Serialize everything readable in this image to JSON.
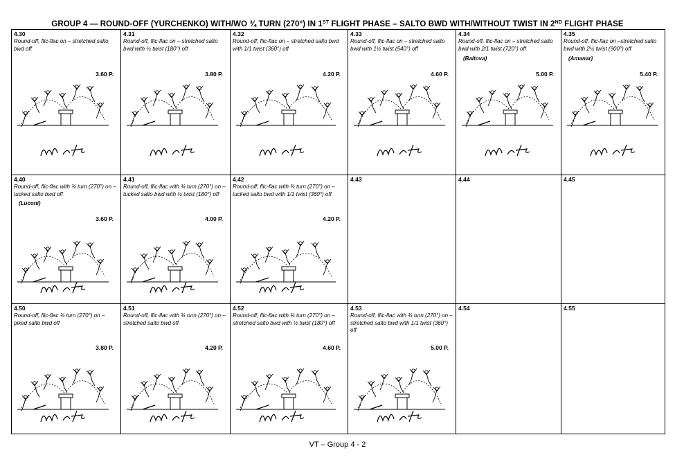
{
  "title": {
    "part1": "GROUP 4 — ROUND-OFF (YURCHENKO) WITH/WO ¾ TURN (270°) IN 1",
    "sup1": "ST",
    "part2": " FLIGHT PHASE – SALTO BWD WITH/WITHOUT TWIST IN 2",
    "sup2": "ND",
    "part3": " FLIGHT PHASE"
  },
  "rows": [
    {
      "cells": [
        {
          "code": "4.30",
          "desc": "Round-off, flic-flac on – stretched salto bwd off",
          "person": "",
          "value": "3.60 P.",
          "turn_label": "",
          "twist_label": "",
          "has_drawing": true
        },
        {
          "code": "4.31",
          "desc": "Round-off, flic-flac on – stretched salto bwd with ½ twist (180°) off",
          "person": "",
          "value": "3.80 P.",
          "turn_label": "",
          "twist_label": "180°",
          "has_drawing": true
        },
        {
          "code": "4.32",
          "desc": "Round-off, flic-flac on – stretched salto bwd with 1/1 twist (360°) off",
          "person": "",
          "value": "4.20 P.",
          "turn_label": "",
          "twist_label": "360°",
          "has_drawing": true
        },
        {
          "code": "4.33",
          "desc": "Round-off, flic-flac on – stretched salto bwd with 1½ twist (540°) off",
          "person": "",
          "value": "4.60 P.",
          "turn_label": "",
          "twist_label": "540°",
          "has_drawing": true
        },
        {
          "code": "4.34",
          "desc": "Round-off, flic-flac on – stretched salto bwd with 2/1 twist (720°) off",
          "person": "(Baitova)",
          "value": "5.00 P.",
          "turn_label": "",
          "twist_label": "720°",
          "has_drawing": true
        },
        {
          "code": "4.35",
          "desc": "Round-off, flic-flac on –stretched salto bwd with 2½ twist (900°) off",
          "person": "(Amanar)",
          "value": "5.40 P.",
          "turn_label": "",
          "twist_label": "900°",
          "has_drawing": true
        }
      ]
    },
    {
      "cells": [
        {
          "code": "4.40",
          "desc": "Round-off, flic-flac with ¾ turn (270°) on – tucked salto bwd off",
          "person": "(Luconi)",
          "value": "3.60 P.",
          "turn_label": "270°",
          "twist_label": "",
          "has_drawing": true
        },
        {
          "code": "4.41",
          "desc": "Round-off, flic-flac with ¾ turn (270°) on – tucked salto bwd with ½ twist (180°) off",
          "person": "",
          "value": "4.00 P.",
          "turn_label": "270°",
          "twist_label": "180°",
          "has_drawing": true
        },
        {
          "code": "4.42",
          "desc": "Round-off, flic-flac with ¾ turn (270°) on – tucked salto bwd with 1/1 twist (360°) off",
          "person": "",
          "value": "4.20 P.",
          "turn_label": "270°",
          "twist_label": "360°",
          "has_drawing": true
        },
        {
          "code": "4.43",
          "desc": "",
          "person": "",
          "value": "",
          "turn_label": "",
          "twist_label": "",
          "has_drawing": false
        },
        {
          "code": "4.44",
          "desc": "",
          "person": "",
          "value": "",
          "turn_label": "",
          "twist_label": "",
          "has_drawing": false
        },
        {
          "code": "4.45",
          "desc": "",
          "person": "",
          "value": "",
          "turn_label": "",
          "twist_label": "",
          "has_drawing": false
        }
      ]
    },
    {
      "cells": [
        {
          "code": "4.50",
          "desc": "Round-off, flic-flac ¾ turn (270°) on – piked salto bwd off",
          "person": "",
          "value": "3.80 P.",
          "turn_label": "270°",
          "twist_label": "",
          "has_drawing": true
        },
        {
          "code": "4.51",
          "desc": "Round-off, flic-flac with ¾ turn (270°) on – stretched salto bwd off",
          "person": "",
          "value": "4.20 P.",
          "turn_label": "270°",
          "twist_label": "",
          "has_drawing": true
        },
        {
          "code": "4.52",
          "desc": "Round-off, flic-flac with ¾ turn (270°) on – stretched salto bwd with ½ twist (180°) off",
          "person": "",
          "value": "4.60 P.",
          "turn_label": "270°",
          "twist_label": "180°",
          "has_drawing": true
        },
        {
          "code": "4.53",
          "desc": "Round-off, flic-flac with ¾ turn (270°) on – stretched salto bwd with 1/1 twist (360°) off",
          "person": "",
          "value": "5.00 P.",
          "turn_label": "270°",
          "twist_label": "360°",
          "has_drawing": true
        },
        {
          "code": "4.54",
          "desc": "",
          "person": "",
          "value": "",
          "turn_label": "",
          "twist_label": "",
          "has_drawing": false
        },
        {
          "code": "4.55",
          "desc": "",
          "person": "",
          "value": "",
          "turn_label": "",
          "twist_label": "",
          "has_drawing": false
        }
      ]
    }
  ],
  "footer": "VT – Group 4 - 2"
}
